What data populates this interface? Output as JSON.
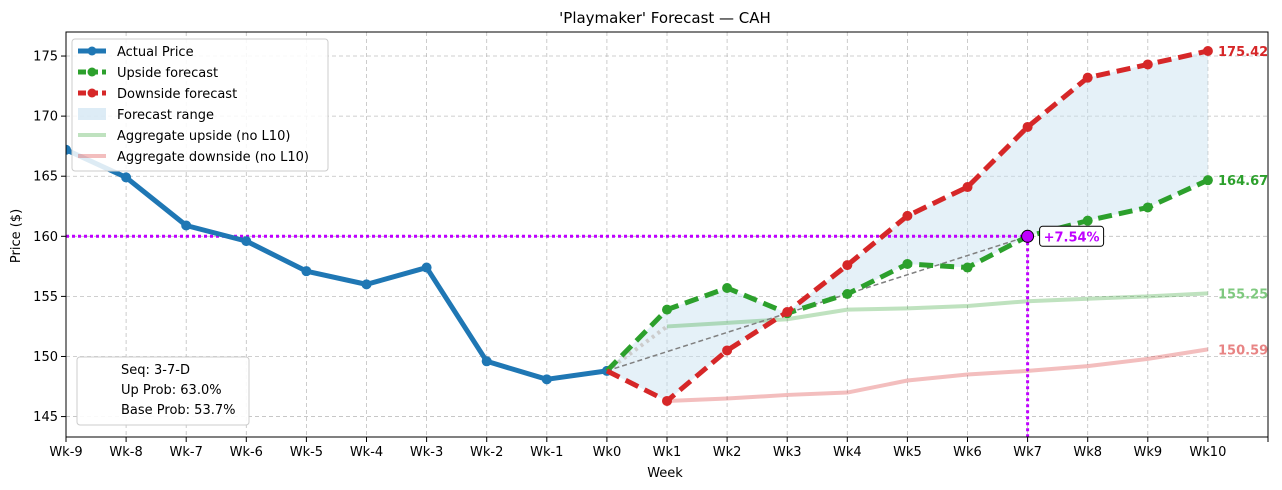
{
  "chart_data": {
    "type": "line",
    "title": "'Playmaker' Forecast — CAH",
    "xlabel": "Week",
    "ylabel": "Price ($)",
    "x_categories": [
      "Wk-9",
      "Wk-8",
      "Wk-7",
      "Wk-6",
      "Wk-5",
      "Wk-4",
      "Wk-3",
      "Wk-2",
      "Wk-1",
      "Wk0",
      "Wk1",
      "Wk2",
      "Wk3",
      "Wk4",
      "Wk5",
      "Wk6",
      "Wk7",
      "Wk8",
      "Wk9",
      "Wk10"
    ],
    "ylim": [
      143.3,
      177
    ],
    "yticks": [
      145,
      150,
      155,
      160,
      165,
      170,
      175
    ],
    "grid": true,
    "legend_position": "top-left",
    "series": [
      {
        "key": "actual",
        "name": "Actual Price",
        "color": "#1f77b4",
        "style": "solid",
        "marker": true,
        "x": [
          "Wk-9",
          "Wk-8",
          "Wk-7",
          "Wk-6",
          "Wk-5",
          "Wk-4",
          "Wk-3",
          "Wk-2",
          "Wk-1",
          "Wk0"
        ],
        "values": [
          167.2,
          164.9,
          160.9,
          159.6,
          157.1,
          156.0,
          157.4,
          149.6,
          148.1,
          148.8
        ]
      },
      {
        "key": "upside",
        "name": "Upside forecast",
        "color": "#2ca02c",
        "style": "dashed",
        "marker": true,
        "x": [
          "Wk0",
          "Wk1",
          "Wk2",
          "Wk3",
          "Wk4",
          "Wk5",
          "Wk6",
          "Wk7",
          "Wk8",
          "Wk9",
          "Wk10"
        ],
        "values": [
          148.8,
          153.9,
          155.7,
          153.6,
          155.2,
          157.7,
          157.4,
          160.0,
          161.3,
          162.4,
          164.67
        ]
      },
      {
        "key": "downside",
        "name": "Downside forecast",
        "color": "#d62728",
        "style": "dashed",
        "marker": true,
        "x": [
          "Wk0",
          "Wk1",
          "Wk2",
          "Wk3",
          "Wk4",
          "Wk5",
          "Wk6",
          "Wk7",
          "Wk8",
          "Wk9",
          "Wk10"
        ],
        "values": [
          148.8,
          146.3,
          150.5,
          153.7,
          157.6,
          161.7,
          164.1,
          169.1,
          173.2,
          174.3,
          175.42
        ]
      },
      {
        "key": "agg_up",
        "name": "Aggregate upside (no L10)",
        "color": "#2ca02c",
        "style": "solid",
        "marker": false,
        "x": [
          "Wk1",
          "Wk2",
          "Wk3",
          "Wk4",
          "Wk5",
          "Wk6",
          "Wk7",
          "Wk8",
          "Wk9",
          "Wk10"
        ],
        "values": [
          152.5,
          152.8,
          153.1,
          153.9,
          154.0,
          154.2,
          154.6,
          154.8,
          155.0,
          155.25
        ]
      },
      {
        "key": "agg_down",
        "name": "Aggregate downside (no L10)",
        "color": "#d62728",
        "style": "solid",
        "marker": false,
        "x": [
          "Wk1",
          "Wk2",
          "Wk3",
          "Wk4",
          "Wk5",
          "Wk6",
          "Wk7",
          "Wk8",
          "Wk9",
          "Wk10"
        ],
        "values": [
          146.3,
          146.5,
          146.8,
          147.0,
          148.0,
          148.5,
          148.8,
          149.2,
          149.8,
          150.59
        ]
      }
    ],
    "forecast_range_label": "Forecast range",
    "end_labels": [
      {
        "series": "downside",
        "text": "175.42",
        "color": "#d62728"
      },
      {
        "series": "upside",
        "text": "164.67",
        "color": "#2ca02c"
      },
      {
        "series": "agg_up",
        "text": "155.25",
        "color": "#7fc97f"
      },
      {
        "series": "agg_down",
        "text": "150.59",
        "color": "#e88484"
      }
    ],
    "target": {
      "x": "Wk7",
      "y": 160.0,
      "label": "+7.54%",
      "color": "#bf00ff",
      "trend_from": {
        "x": "Wk0",
        "y": 148.8
      }
    },
    "info_box": [
      "Seq: 3-7-D",
      "Up Prob: 63.0%",
      "Base Prob: 53.7%"
    ]
  }
}
